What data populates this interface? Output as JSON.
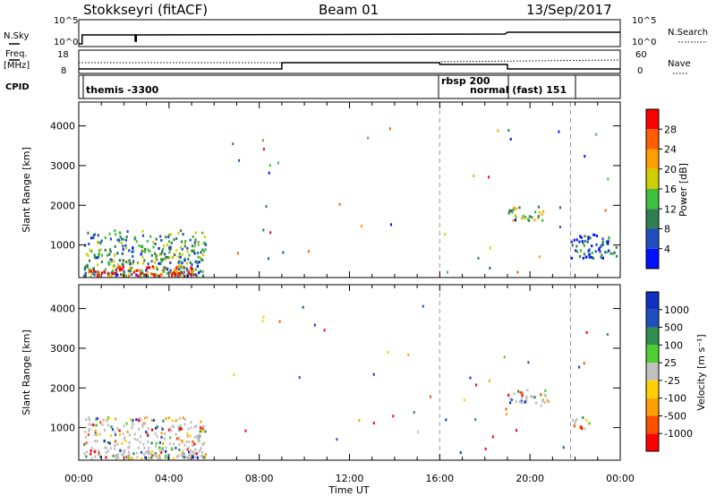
{
  "header": {
    "station": "Stokkseyri (fitACF)",
    "beam": "Beam 01",
    "date": "13/Sep/2017"
  },
  "noise_panel": {
    "left_label": "N.Sky",
    "left_ticks": [
      "10^5",
      "10^0"
    ],
    "right_ticks": [
      "10^5",
      "10^0"
    ],
    "right_label": "N.Search"
  },
  "freq_panel": {
    "left_label_top": "Freq.",
    "left_label_bottom": "[MHz]",
    "left_ticks": [
      "18",
      "8"
    ],
    "right_ticks": [
      "60",
      "0"
    ],
    "right_label": "Nave"
  },
  "cpid_panel": {
    "label": "CPID",
    "programs": [
      {
        "label": "themis -3300"
      },
      {
        "label": "rbsp 200"
      },
      {
        "label": "normal (fast) 151"
      }
    ]
  },
  "time_axis": {
    "xlabel": "Time UT",
    "ticks": [
      "00:00",
      "04:00",
      "08:00",
      "12:00",
      "16:00",
      "20:00",
      "00:00"
    ]
  },
  "colors": {
    "power": [
      "#0010ff",
      "#1f4fbf",
      "#2f7f4f",
      "#3fbf3f",
      "#cfcf00",
      "#ff9f00",
      "#ff5f00",
      "#ff0000"
    ],
    "velocity": [
      "#ff0000",
      "#ff4f00",
      "#ff9f00",
      "#ffcf00",
      "#c0c0c0",
      "#4fcf2f",
      "#2f8f4f",
      "#1f4fbf",
      "#1030c0"
    ]
  },
  "chart_data": [
    {
      "type": "heatmap",
      "title": "",
      "xlabel": "",
      "ylabel": "Slant Range [km]",
      "x_range_hours": [
        0,
        24
      ],
      "ylim": [
        180,
        4600
      ],
      "yticks": [
        "1000",
        "2000",
        "3000",
        "4000"
      ],
      "colorbar": {
        "label": "Power [dB]",
        "ticks": [
          "4",
          "8",
          "12",
          "16",
          "20",
          "24",
          "28"
        ],
        "range": [
          0,
          30
        ]
      },
      "regions": [
        {
          "t": [
            0.2,
            5.6
          ],
          "r": [
            250,
            1400
          ],
          "level": 0.35,
          "note": "broad echo region"
        },
        {
          "t": [
            0.4,
            5.2
          ],
          "r": [
            250,
            500
          ],
          "level": 0.95
        },
        {
          "t": [
            19.0,
            20.6
          ],
          "r": [
            1650,
            2000
          ],
          "level": 0.5
        },
        {
          "t": [
            21.8,
            23.8
          ],
          "r": [
            700,
            1300
          ],
          "level": 0.2
        }
      ]
    },
    {
      "type": "heatmap",
      "title": "",
      "xlabel": "Time UT",
      "ylabel": "Slant Range [km]",
      "x_range_hours": [
        0,
        24
      ],
      "ylim": [
        180,
        4600
      ],
      "yticks": [
        "1000",
        "2000",
        "3000",
        "4000"
      ],
      "colorbar": {
        "label": "Velocity [m s⁻¹]",
        "ticks": [
          "1000",
          "500",
          "100",
          "25",
          "-25",
          "-100",
          "-500",
          "-1000"
        ],
        "range": [
          -1200,
          1200
        ]
      },
      "regions": [
        {
          "t": [
            0.2,
            5.6
          ],
          "r": [
            250,
            1300
          ],
          "level": 0.5
        },
        {
          "t": [
            19.0,
            20.8
          ],
          "r": [
            1650,
            2000
          ],
          "level": 0.5
        },
        {
          "t": [
            21.8,
            22.6
          ],
          "r": [
            1000,
            1300
          ],
          "level": 0.3
        }
      ]
    }
  ]
}
